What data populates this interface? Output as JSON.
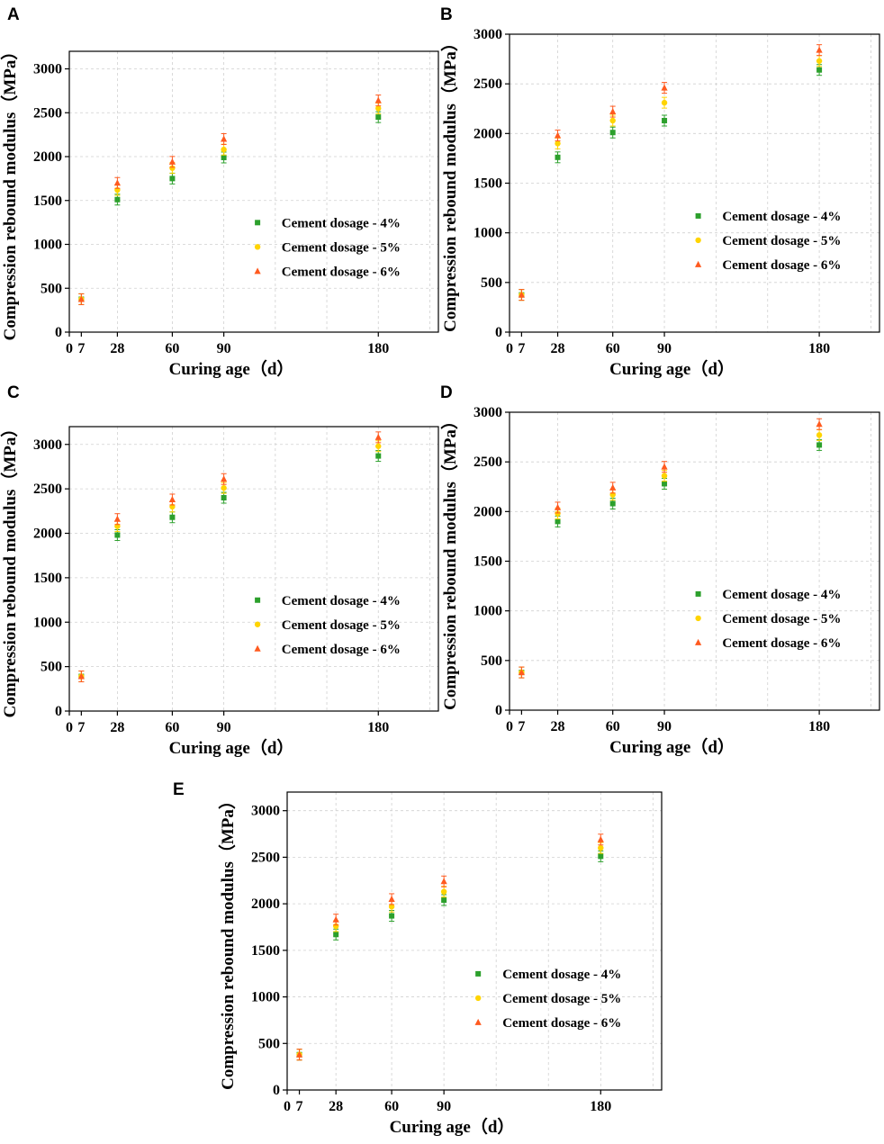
{
  "legend": [
    "Cement dosage - 4%",
    "Cement dosage - 5%",
    "Cement dosage - 6%"
  ],
  "colors": {
    "s4": "#2ca02c",
    "s5": "#ffd400",
    "s6": "#ff5a1f",
    "grid": "#d0d0d0",
    "axis": "#000000"
  },
  "chart_data": [
    {
      "panel": "A",
      "type": "scatter",
      "xlabel": "Curing age（d）",
      "ylabel": "Compression rebound modulus（MPa）",
      "x": [
        7,
        28,
        60,
        90,
        180
      ],
      "xlim": [
        0,
        215
      ],
      "ylim": [
        0,
        3200
      ],
      "xticks": [
        "0",
        "7",
        "28",
        "60",
        "90",
        "180"
      ],
      "yticks": [
        "0",
        "500",
        "1000",
        "1500",
        "2000",
        "2500",
        "3000"
      ],
      "grid": true,
      "legend_position": "center-right",
      "series": [
        {
          "name": "Cement dosage - 4%",
          "values": [
            375,
            1510,
            1750,
            1990,
            2450
          ]
        },
        {
          "name": "Cement dosage - 5%",
          "values": [
            375,
            1620,
            1870,
            2080,
            2550
          ]
        },
        {
          "name": "Cement dosage - 6%",
          "values": [
            375,
            1700,
            1940,
            2200,
            2640
          ]
        }
      ]
    },
    {
      "panel": "B",
      "type": "scatter",
      "xlabel": "Curing age（d）",
      "ylabel": "Compression rebound modulus（MPa）",
      "x": [
        7,
        28,
        60,
        90,
        180
      ],
      "xlim": [
        0,
        215
      ],
      "ylim": [
        0,
        3000
      ],
      "xticks": [
        "0",
        "7",
        "28",
        "60",
        "90",
        "180"
      ],
      "yticks": [
        "0",
        "500",
        "1000",
        "1500",
        "2000",
        "2500",
        "3000"
      ],
      "grid": true,
      "legend_position": "center-right",
      "series": [
        {
          "name": "Cement dosage - 4%",
          "values": [
            375,
            1760,
            2010,
            2130,
            2640
          ]
        },
        {
          "name": "Cement dosage - 5%",
          "values": [
            375,
            1900,
            2130,
            2310,
            2730
          ]
        },
        {
          "name": "Cement dosage - 6%",
          "values": [
            375,
            1980,
            2220,
            2460,
            2840
          ]
        }
      ]
    },
    {
      "panel": "C",
      "type": "scatter",
      "xlabel": "Curing age（d）",
      "ylabel": "Compression rebound modulus（MPa）",
      "x": [
        7,
        28,
        60,
        90,
        180
      ],
      "xlim": [
        0,
        215
      ],
      "ylim": [
        0,
        3200
      ],
      "xticks": [
        "0",
        "7",
        "28",
        "60",
        "90",
        "180"
      ],
      "yticks": [
        "0",
        "500",
        "1000",
        "1500",
        "2000",
        "2500",
        "3000"
      ],
      "grid": true,
      "legend_position": "center-right",
      "series": [
        {
          "name": "Cement dosage - 4%",
          "values": [
            390,
            1980,
            2180,
            2400,
            2870
          ]
        },
        {
          "name": "Cement dosage - 5%",
          "values": [
            390,
            2080,
            2300,
            2510,
            2980
          ]
        },
        {
          "name": "Cement dosage - 6%",
          "values": [
            390,
            2160,
            2380,
            2610,
            3080
          ]
        }
      ]
    },
    {
      "panel": "D",
      "type": "scatter",
      "xlabel": "Curing age（d）",
      "ylabel": "Compression rebound modulus（MPa）",
      "x": [
        7,
        28,
        60,
        90,
        180
      ],
      "xlim": [
        0,
        215
      ],
      "ylim": [
        0,
        3000
      ],
      "xticks": [
        "0",
        "7",
        "28",
        "60",
        "90",
        "180"
      ],
      "yticks": [
        "0",
        "500",
        "1000",
        "1500",
        "2000",
        "2500",
        "3000"
      ],
      "grid": true,
      "legend_position": "center-right",
      "series": [
        {
          "name": "Cement dosage - 4%",
          "values": [
            380,
            1900,
            2080,
            2280,
            2670
          ]
        },
        {
          "name": "Cement dosage - 5%",
          "values": [
            380,
            1980,
            2170,
            2360,
            2770
          ]
        },
        {
          "name": "Cement dosage - 6%",
          "values": [
            380,
            2040,
            2240,
            2450,
            2880
          ]
        }
      ]
    },
    {
      "panel": "E",
      "type": "scatter",
      "xlabel": "Curing age（d）",
      "ylabel": "Compression rebound modulus（MPa）",
      "x": [
        7,
        28,
        60,
        90,
        180
      ],
      "xlim": [
        0,
        215
      ],
      "ylim": [
        0,
        3200
      ],
      "xticks": [
        "0",
        "7",
        "28",
        "60",
        "90",
        "180"
      ],
      "yticks": [
        "0",
        "500",
        "1000",
        "1500",
        "2000",
        "2500",
        "3000"
      ],
      "grid": true,
      "legend_position": "center-right",
      "series": [
        {
          "name": "Cement dosage - 4%",
          "values": [
            380,
            1670,
            1870,
            2040,
            2510
          ]
        },
        {
          "name": "Cement dosage - 5%",
          "values": [
            380,
            1760,
            1970,
            2130,
            2600
          ]
        },
        {
          "name": "Cement dosage - 6%",
          "values": [
            380,
            1830,
            2050,
            2240,
            2690
          ]
        }
      ]
    }
  ]
}
